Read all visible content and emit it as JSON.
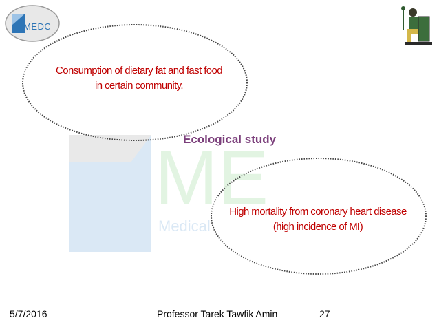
{
  "logo": {
    "label": "MEDC"
  },
  "watermark": {
    "caption": "Medical"
  },
  "bubbles": {
    "cause_line1": "Consumption of dietary fat and fast food",
    "cause_line2": "in certain community.",
    "effect_line1": "High mortality from coronary heart disease",
    "effect_line2": "(high incidence of MI)"
  },
  "title": "Ecological study",
  "footer": {
    "date": "5/7/2016",
    "author": "Professor Tarek Tawfik Amin",
    "page": "27"
  },
  "colors": {
    "bubble_text": "#c00000",
    "title": "#7b3f7b",
    "logo_blue": "#2e75b6",
    "watermark_green": "#7ed07e"
  }
}
